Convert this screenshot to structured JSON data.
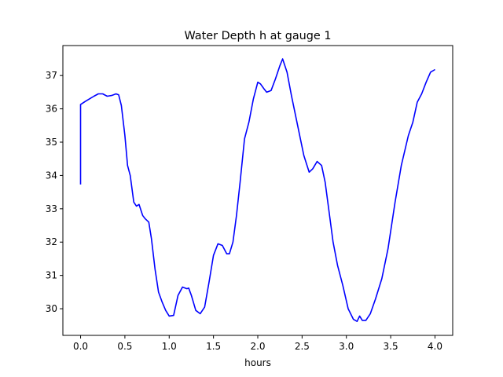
{
  "chart_data": {
    "type": "line",
    "title": "Water Depth h at gauge 1",
    "xlabel": "hours",
    "ylabel": "",
    "xlim": [
      -0.2,
      4.2
    ],
    "ylim": [
      29.2,
      37.9
    ],
    "xticks": [
      0.0,
      0.5,
      1.0,
      1.5,
      2.0,
      2.5,
      3.0,
      3.5,
      4.0
    ],
    "xtick_labels": [
      "0.0",
      "0.5",
      "1.0",
      "1.5",
      "2.0",
      "2.5",
      "3.0",
      "3.5",
      "4.0"
    ],
    "yticks": [
      30,
      31,
      32,
      33,
      34,
      35,
      36,
      37
    ],
    "ytick_labels": [
      "30",
      "31",
      "32",
      "33",
      "34",
      "35",
      "36",
      "37"
    ],
    "grid": false,
    "series": [
      {
        "color": "#0000ff",
        "x": [
          0.0,
          0.0,
          0.05,
          0.1,
          0.15,
          0.2,
          0.25,
          0.3,
          0.35,
          0.4,
          0.43,
          0.46,
          0.5,
          0.53,
          0.56,
          0.6,
          0.63,
          0.66,
          0.7,
          0.73,
          0.77,
          0.8,
          0.84,
          0.88,
          0.92,
          0.96,
          1.0,
          1.05,
          1.1,
          1.15,
          1.2,
          1.22,
          1.25,
          1.3,
          1.35,
          1.4,
          1.45,
          1.5,
          1.55,
          1.6,
          1.65,
          1.68,
          1.72,
          1.76,
          1.8,
          1.85,
          1.9,
          1.95,
          2.0,
          2.03,
          2.07,
          2.1,
          2.15,
          2.2,
          2.25,
          2.28,
          2.33,
          2.38,
          2.45,
          2.52,
          2.58,
          2.62,
          2.67,
          2.72,
          2.76,
          2.8,
          2.85,
          2.9,
          2.96,
          3.02,
          3.08,
          3.12,
          3.15,
          3.18,
          3.22,
          3.27,
          3.33,
          3.4,
          3.47,
          3.55,
          3.62,
          3.7,
          3.75,
          3.8,
          3.85,
          3.9,
          3.95,
          4.0
        ],
        "y": [
          33.73,
          36.13,
          36.22,
          36.3,
          36.38,
          36.45,
          36.45,
          36.38,
          36.4,
          36.45,
          36.42,
          36.1,
          35.2,
          34.3,
          34.0,
          33.2,
          33.08,
          33.13,
          32.8,
          32.7,
          32.6,
          32.1,
          31.2,
          30.5,
          30.2,
          29.95,
          29.78,
          29.8,
          30.4,
          30.65,
          30.6,
          30.62,
          30.4,
          29.95,
          29.85,
          30.05,
          30.8,
          31.6,
          31.95,
          31.9,
          31.65,
          31.65,
          32.0,
          32.8,
          33.8,
          35.1,
          35.6,
          36.3,
          36.8,
          36.75,
          36.6,
          36.5,
          36.55,
          36.9,
          37.3,
          37.5,
          37.1,
          36.4,
          35.5,
          34.6,
          34.1,
          34.2,
          34.42,
          34.3,
          33.8,
          33.0,
          32.0,
          31.3,
          30.7,
          30.0,
          29.68,
          29.62,
          29.78,
          29.65,
          29.65,
          29.85,
          30.3,
          30.9,
          31.8,
          33.2,
          34.3,
          35.2,
          35.6,
          36.2,
          36.45,
          36.8,
          37.1,
          37.18
        ]
      }
    ]
  }
}
